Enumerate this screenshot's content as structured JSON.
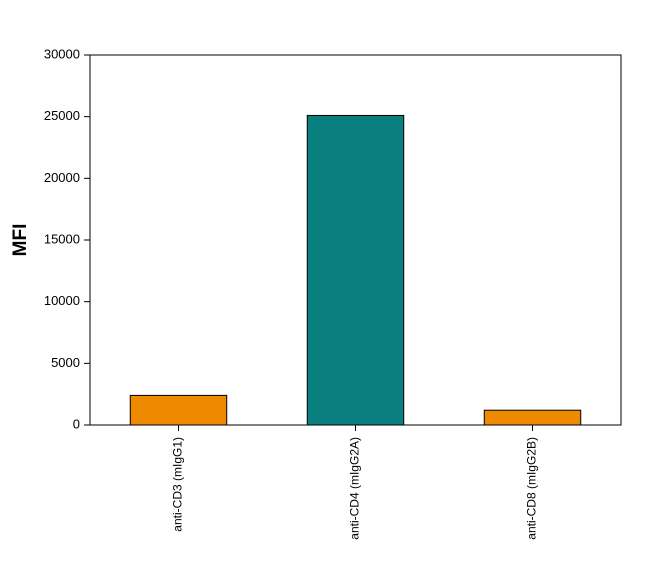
{
  "chart_data": {
    "type": "bar",
    "title": "",
    "xlabel": "",
    "ylabel": "MFI",
    "ylim": [
      0,
      30000
    ],
    "yticks": [
      0,
      5000,
      10000,
      15000,
      20000,
      25000,
      30000
    ],
    "categories": [
      "anti-CD3 (mIgG1)",
      "anti-CD4 (mIgG2A)",
      "anti-CD8 (mIgG2B)"
    ],
    "values": [
      2400,
      25100,
      1200
    ],
    "bar_colors": [
      "#ee8a00",
      "#0a7f80",
      "#ee8a00"
    ],
    "grid": false,
    "legend": "none"
  }
}
